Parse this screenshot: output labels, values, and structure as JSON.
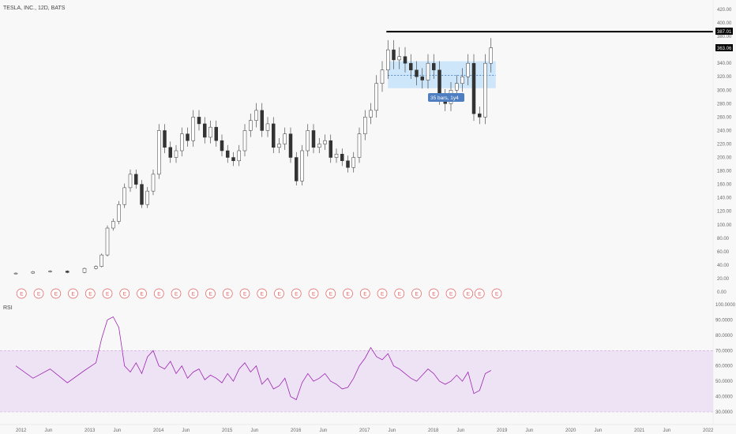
{
  "symbol_title": "TESLA, INC., 12D, BATS",
  "rsi_label": "RSI",
  "range_tag": "35 bars, 1y4",
  "price_tags": {
    "resistance": "387.01",
    "last": "363.06"
  },
  "colors": {
    "candle": "#333333",
    "rsi_line": "#9c27b0",
    "rsi_band": "#e1bee7",
    "range_box": "#bbdefb",
    "earnings": "#e05a5a",
    "tag_bg": "#4f7fc1"
  },
  "price_ticks": [
    "420.00",
    "400.00",
    "380.00",
    "360.00",
    "340.00",
    "320.00",
    "300.00",
    "280.00",
    "260.00",
    "240.00",
    "220.00",
    "200.00",
    "180.00",
    "160.00",
    "140.00",
    "120.00",
    "100.00",
    "80.00",
    "60.00",
    "40.00",
    "20.00",
    "0.00"
  ],
  "rsi_ticks": [
    "100.0000",
    "90.0000",
    "80.0000",
    "70.0000",
    "60.0000",
    "50.0000",
    "40.0000",
    "30.0000"
  ],
  "x_ticks": [
    "2012",
    "Jun",
    "2013",
    "Jun",
    "2014",
    "Jun",
    "2015",
    "Jun",
    "2016",
    "Jun",
    "2017",
    "Jun",
    "2018",
    "Jun",
    "2019",
    "Jun",
    "2020",
    "Jun",
    "2021",
    "Jun",
    "2022"
  ],
  "earnings_marker": "E",
  "chart_data": [
    {
      "type": "candlestick",
      "title": "TESLA, INC., 12D, BATS",
      "ylim": [
        0,
        420
      ],
      "x_range": [
        "2012-01",
        "2022-01"
      ],
      "resistance_level": 387.01,
      "last_price": 363.06,
      "range_box": {
        "top": 343,
        "bottom": 303,
        "mid": 322,
        "bars": 35
      },
      "series": [
        {
          "name": "close",
          "x": [
            "2012-01",
            "2012-04",
            "2012-07",
            "2012-10",
            "2013-01",
            "2013-03",
            "2013-04",
            "2013-05",
            "2013-06",
            "2013-07",
            "2013-08",
            "2013-09",
            "2013-10",
            "2013-11",
            "2013-12",
            "2014-01",
            "2014-02",
            "2014-03",
            "2014-04",
            "2014-05",
            "2014-06",
            "2014-07",
            "2014-08",
            "2014-09",
            "2014-10",
            "2014-11",
            "2014-12",
            "2015-01",
            "2015-02",
            "2015-03",
            "2015-04",
            "2015-05",
            "2015-06",
            "2015-07",
            "2015-08",
            "2015-09",
            "2015-10",
            "2015-11",
            "2015-12",
            "2016-01",
            "2016-02",
            "2016-03",
            "2016-04",
            "2016-05",
            "2016-06",
            "2016-07",
            "2016-08",
            "2016-09",
            "2016-10",
            "2016-11",
            "2016-12",
            "2017-01",
            "2017-02",
            "2017-03",
            "2017-04",
            "2017-05",
            "2017-06",
            "2017-07",
            "2017-08",
            "2017-09",
            "2017-10",
            "2017-11",
            "2017-12",
            "2018-01",
            "2018-02",
            "2018-03",
            "2018-04",
            "2018-05",
            "2018-06",
            "2018-07",
            "2018-08",
            "2018-09",
            "2018-10",
            "2018-11",
            "2018-12"
          ],
          "values": [
            28,
            30,
            31,
            29,
            35,
            38,
            55,
            95,
            105,
            130,
            155,
            175,
            160,
            130,
            150,
            175,
            240,
            215,
            200,
            210,
            235,
            225,
            260,
            250,
            230,
            245,
            225,
            210,
            200,
            195,
            210,
            240,
            255,
            270,
            240,
            250,
            215,
            220,
            235,
            200,
            165,
            210,
            240,
            215,
            220,
            225,
            200,
            205,
            195,
            185,
            200,
            235,
            260,
            270,
            310,
            330,
            360,
            345,
            350,
            340,
            330,
            320,
            315,
            340,
            330,
            290,
            280,
            300,
            310,
            320,
            340,
            265,
            260,
            340,
            363
          ]
        }
      ]
    },
    {
      "type": "line",
      "title": "RSI",
      "ylim": [
        30,
        100
      ],
      "band": [
        30,
        70
      ],
      "series": [
        {
          "name": "RSI",
          "x": [
            "2012-01",
            "2012-04",
            "2012-07",
            "2012-10",
            "2013-01",
            "2013-03",
            "2013-04",
            "2013-05",
            "2013-06",
            "2013-07",
            "2013-08",
            "2013-09",
            "2013-10",
            "2013-11",
            "2013-12",
            "2014-01",
            "2014-02",
            "2014-03",
            "2014-04",
            "2014-05",
            "2014-06",
            "2014-07",
            "2014-08",
            "2014-09",
            "2014-10",
            "2014-11",
            "2014-12",
            "2015-01",
            "2015-02",
            "2015-03",
            "2015-04",
            "2015-05",
            "2015-06",
            "2015-07",
            "2015-08",
            "2015-09",
            "2015-10",
            "2015-11",
            "2015-12",
            "2016-01",
            "2016-02",
            "2016-03",
            "2016-04",
            "2016-05",
            "2016-06",
            "2016-07",
            "2016-08",
            "2016-09",
            "2016-10",
            "2016-11",
            "2016-12",
            "2017-01",
            "2017-02",
            "2017-03",
            "2017-04",
            "2017-05",
            "2017-06",
            "2017-07",
            "2017-08",
            "2017-09",
            "2017-10",
            "2017-11",
            "2017-12",
            "2018-01",
            "2018-02",
            "2018-03",
            "2018-04",
            "2018-05",
            "2018-06",
            "2018-07",
            "2018-08",
            "2018-09",
            "2018-10",
            "2018-11",
            "2018-12"
          ],
          "values": [
            60,
            52,
            58,
            49,
            57,
            62,
            78,
            90,
            92,
            85,
            60,
            56,
            62,
            55,
            66,
            70,
            60,
            58,
            63,
            55,
            60,
            52,
            56,
            58,
            51,
            54,
            52,
            49,
            55,
            50,
            58,
            62,
            56,
            60,
            48,
            52,
            45,
            47,
            52,
            40,
            38,
            49,
            55,
            50,
            52,
            55,
            50,
            48,
            45,
            46,
            52,
            60,
            65,
            72,
            66,
            64,
            68,
            60,
            58,
            55,
            52,
            50,
            54,
            58,
            55,
            50,
            48,
            50,
            54,
            50,
            56,
            42,
            44,
            55,
            57
          ]
        }
      ]
    }
  ]
}
